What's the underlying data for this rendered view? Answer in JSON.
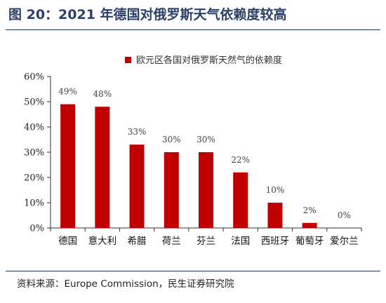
{
  "figure": {
    "title": "图 20：2021 年德国对俄罗斯天气依赖度较高",
    "source": "资料来源：Europe Commission，民生证券研究院"
  },
  "colors": {
    "bar": "#c00000",
    "axis": "#333333"
  },
  "chart_data": {
    "type": "bar",
    "categories": [
      "德国",
      "意大利",
      "希腊",
      "荷兰",
      "芬兰",
      "法国",
      "西班牙",
      "葡萄牙",
      "爱尔兰"
    ],
    "series": [
      {
        "name": "欧元区各国对俄罗斯天然气的依赖度",
        "values": [
          49,
          48,
          33,
          30,
          30,
          22,
          10,
          2,
          0
        ]
      }
    ],
    "data_labels": [
      "49%",
      "48%",
      "33%",
      "30%",
      "30%",
      "22%",
      "10%",
      "2%",
      "0%"
    ],
    "y_ticks": [
      "0%",
      "10%",
      "20%",
      "30%",
      "40%",
      "50%",
      "60%"
    ],
    "ylim": [
      0,
      60
    ],
    "legend_position": "top-center",
    "grid": false
  }
}
